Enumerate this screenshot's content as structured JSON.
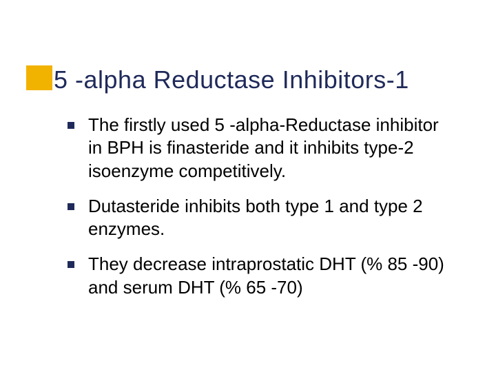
{
  "slide": {
    "title": "5 -alpha Reductase Inhibitors-1",
    "title_color": "#1f2a5a",
    "title_fontsize": 36,
    "accent_color": "#f2b200",
    "bullet_marker_color": "#1f2a5a",
    "body_fontsize": 26,
    "background_color": "#ffffff",
    "bullets": [
      {
        "text": "The firstly used 5 -alpha-Reductase inhibitor in BPH is finasteride and it inhibits type-2 isoenzyme competitively."
      },
      {
        "text": "Dutasteride inhibits both type 1 and type 2 enzymes."
      },
      {
        "text": "They decrease intraprostatic DHT (% 85 -90) and serum DHT (% 65 -70)"
      }
    ]
  }
}
